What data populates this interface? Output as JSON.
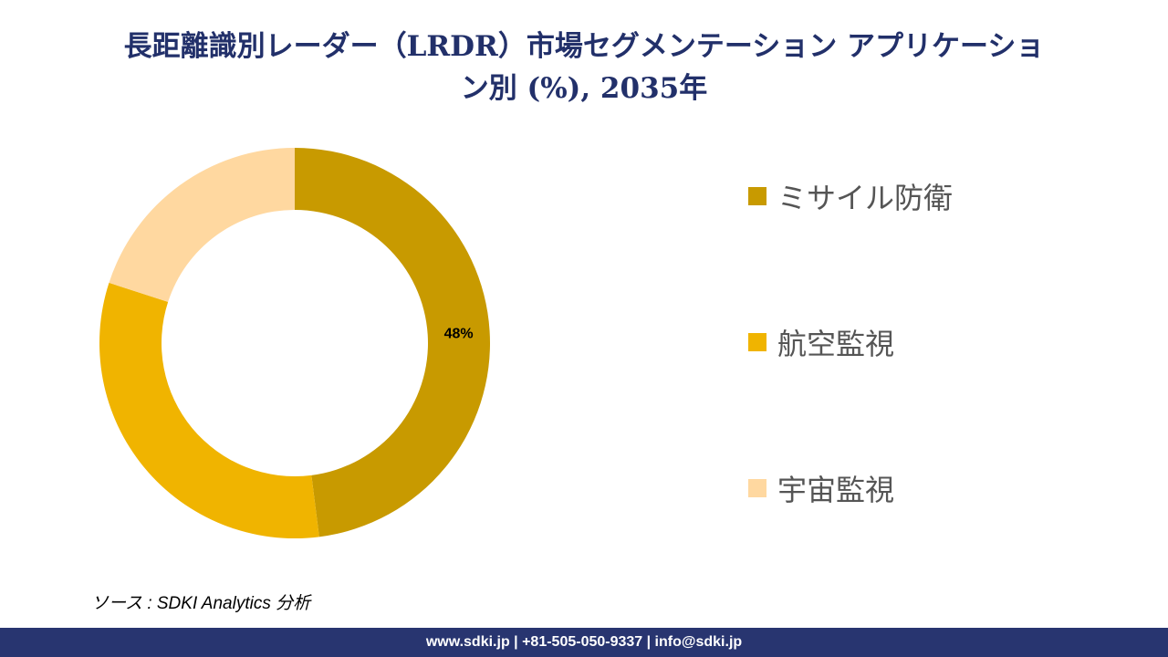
{
  "chart_data": {
    "type": "pie",
    "title_line1": "長距離識別レーダー（LRDR）市場セグメンテーション アプリケーショ",
    "title_line2": "ン別 (%), 2035年",
    "categories": [
      "ミサイル防衛",
      "航空監視",
      "宇宙監視"
    ],
    "values": [
      48,
      32,
      20
    ],
    "data_labels": [
      "48%",
      "",
      ""
    ],
    "colors": [
      "#C89A00",
      "#F0B400",
      "#FFD8A0"
    ],
    "donut": true,
    "legend_position": "right"
  },
  "source": "ソース : SDKI Analytics 分析",
  "footer": "www.sdki.jp | +81-505-050-9337 | info@sdki.jp"
}
